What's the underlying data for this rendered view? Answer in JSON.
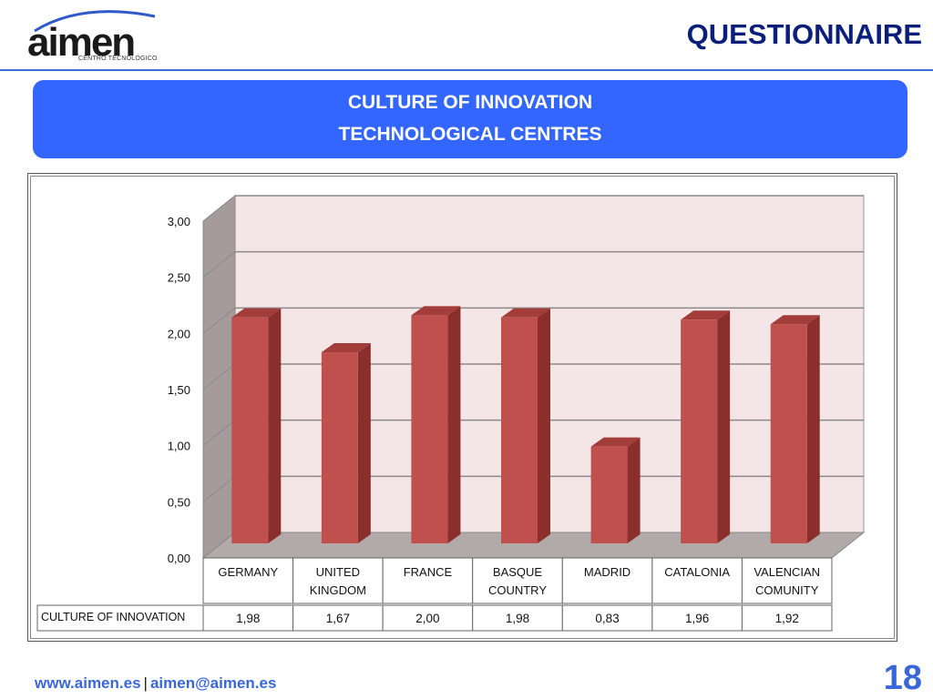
{
  "header": {
    "logo_text": "aimen",
    "logo_sub": "CENTRO TECNOLÓGICO",
    "title": "QUESTIONNAIRE"
  },
  "banner": {
    "line1": "CULTURE OF INNOVATION",
    "line2": "TECHNOLOGICAL CENTRES"
  },
  "chart_data": {
    "type": "bar",
    "title": "",
    "categories": [
      [
        "GERMANY"
      ],
      [
        "UNITED",
        "KINGDOM"
      ],
      [
        "FRANCE"
      ],
      [
        "BASQUE",
        "COUNTRY"
      ],
      [
        "MADRID"
      ],
      [
        "CATALONIA"
      ],
      [
        "VALENCIAN",
        "COMUNITY"
      ]
    ],
    "series": [
      {
        "name": "CULTURE OF INNOVATION",
        "values": [
          1.98,
          1.67,
          2.0,
          1.98,
          0.83,
          1.96,
          1.92
        ]
      }
    ],
    "value_labels": [
      "1,98",
      "1,67",
      "2,00",
      "1,98",
      "0,83",
      "1,96",
      "1,92"
    ],
    "yticks": [
      "0,00",
      "0,50",
      "1,00",
      "1,50",
      "2,00",
      "2,50",
      "3,00"
    ],
    "ylim": [
      0,
      3
    ],
    "grid": true,
    "data_table": true,
    "colors": {
      "bar": "#c0504d",
      "bar_top": "#a23d3a",
      "bar_side": "#8a2f2c",
      "wall": "#f4e6e6"
    }
  },
  "footer": {
    "website": "www.aimen.es",
    "separator": "|",
    "email": "aimen@aimen.es",
    "page_number": "18"
  }
}
